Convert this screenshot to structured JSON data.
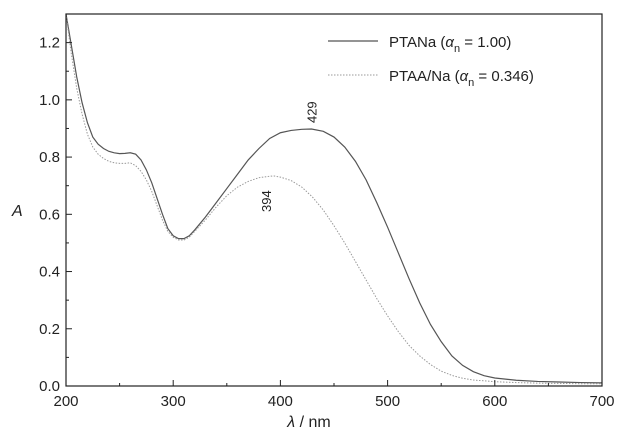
{
  "chart_data": {
    "type": "line",
    "title": "",
    "xlabel_symbol": "λ",
    "xlabel_unit": " / nm",
    "ylabel": "A",
    "xlim": [
      200,
      700
    ],
    "ylim": [
      0,
      1.3
    ],
    "xticks": [
      200,
      300,
      400,
      500,
      600,
      700
    ],
    "xtick_labels": [
      "200",
      "300",
      "400",
      "500",
      "600",
      "700"
    ],
    "yticks": [
      0,
      0.2,
      0.4,
      0.6,
      0.8,
      1.0,
      1.2
    ],
    "ytick_labels": [
      "0.0",
      "0.2",
      "0.4",
      "0.6",
      "0.8",
      "1.0",
      "1.2"
    ],
    "grid": false,
    "legend_position": "top-right",
    "series": [
      {
        "legend_prefix": "PTANa (",
        "legend_alpha": "α",
        "legend_sub": "n",
        "legend_suffix": " = 1.00)",
        "color": "#555555",
        "style": "solid",
        "x": [
          200,
          205,
          210,
          215,
          220,
          225,
          230,
          235,
          240,
          245,
          250,
          255,
          260,
          265,
          270,
          275,
          280,
          285,
          290,
          295,
          300,
          305,
          310,
          315,
          320,
          330,
          340,
          350,
          360,
          370,
          380,
          390,
          400,
          410,
          420,
          429,
          440,
          450,
          460,
          470,
          480,
          490,
          500,
          510,
          520,
          530,
          540,
          550,
          560,
          570,
          580,
          590,
          600,
          620,
          640,
          660,
          680,
          700
        ],
        "y": [
          1.3,
          1.19,
          1.08,
          0.99,
          0.92,
          0.87,
          0.845,
          0.83,
          0.82,
          0.815,
          0.812,
          0.813,
          0.815,
          0.81,
          0.79,
          0.755,
          0.71,
          0.655,
          0.6,
          0.55,
          0.525,
          0.515,
          0.515,
          0.525,
          0.545,
          0.59,
          0.64,
          0.69,
          0.74,
          0.79,
          0.83,
          0.865,
          0.885,
          0.893,
          0.897,
          0.898,
          0.89,
          0.87,
          0.835,
          0.785,
          0.72,
          0.64,
          0.555,
          0.465,
          0.375,
          0.29,
          0.215,
          0.155,
          0.105,
          0.072,
          0.05,
          0.036,
          0.028,
          0.02,
          0.016,
          0.014,
          0.012,
          0.011
        ],
        "peak_label": "429",
        "peak_x": 429,
        "peak_y": 0.898
      },
      {
        "legend_prefix": "PTAA/Na (",
        "legend_alpha": "α",
        "legend_sub": "n",
        "legend_suffix": " = 0.346)",
        "color": "#999999",
        "style": "dotted",
        "x": [
          200,
          205,
          210,
          215,
          220,
          225,
          230,
          235,
          240,
          245,
          250,
          255,
          260,
          265,
          270,
          275,
          280,
          285,
          290,
          295,
          300,
          305,
          310,
          315,
          320,
          330,
          340,
          350,
          360,
          370,
          380,
          390,
          394,
          400,
          410,
          420,
          430,
          440,
          450,
          460,
          470,
          480,
          490,
          500,
          510,
          520,
          530,
          540,
          550,
          560,
          570,
          580,
          600,
          620,
          640,
          660,
          680,
          700
        ],
        "y": [
          1.3,
          1.16,
          1.04,
          0.95,
          0.88,
          0.835,
          0.81,
          0.795,
          0.785,
          0.78,
          0.778,
          0.778,
          0.78,
          0.77,
          0.75,
          0.72,
          0.68,
          0.63,
          0.58,
          0.54,
          0.52,
          0.51,
          0.51,
          0.52,
          0.54,
          0.58,
          0.625,
          0.665,
          0.695,
          0.715,
          0.728,
          0.733,
          0.734,
          0.73,
          0.718,
          0.695,
          0.66,
          0.615,
          0.56,
          0.5,
          0.435,
          0.37,
          0.305,
          0.245,
          0.19,
          0.142,
          0.105,
          0.075,
          0.052,
          0.037,
          0.027,
          0.021,
          0.015,
          0.012,
          0.01,
          0.009,
          0.008,
          0.008
        ],
        "peak_label": "394",
        "peak_x": 394,
        "peak_y": 0.734
      }
    ]
  }
}
